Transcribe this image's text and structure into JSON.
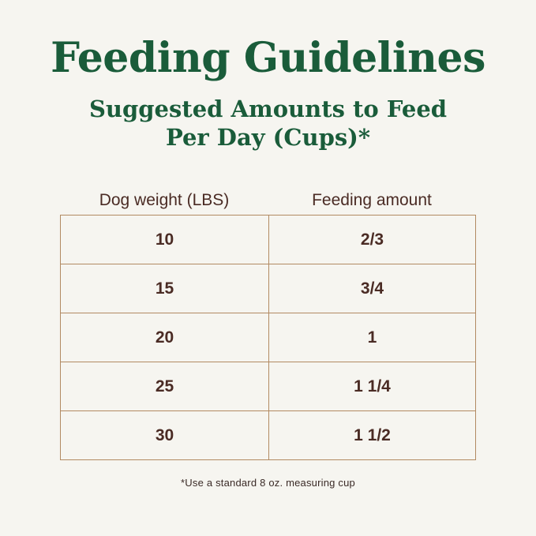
{
  "header": {
    "title": "Feeding Guidelines",
    "subtitle_line1": "Suggested Amounts to Feed",
    "subtitle_line2": "Per Day (Cups)*"
  },
  "table": {
    "columns": [
      "Dog weight (LBS)",
      "Feeding amount"
    ],
    "rows": [
      {
        "weight": "10",
        "amount": "2/3"
      },
      {
        "weight": "15",
        "amount": "3/4"
      },
      {
        "weight": "20",
        "amount": "1"
      },
      {
        "weight": "25",
        "amount": "1 1/4"
      },
      {
        "weight": "30",
        "amount": "1 1/2"
      }
    ]
  },
  "footnote": "*Use a standard 8 oz. measuring cup",
  "colors": {
    "title_green": "#1a5c3a",
    "text_brown": "#4a2b24",
    "border_tan": "#b28a62",
    "background": "#f6f5f0"
  }
}
